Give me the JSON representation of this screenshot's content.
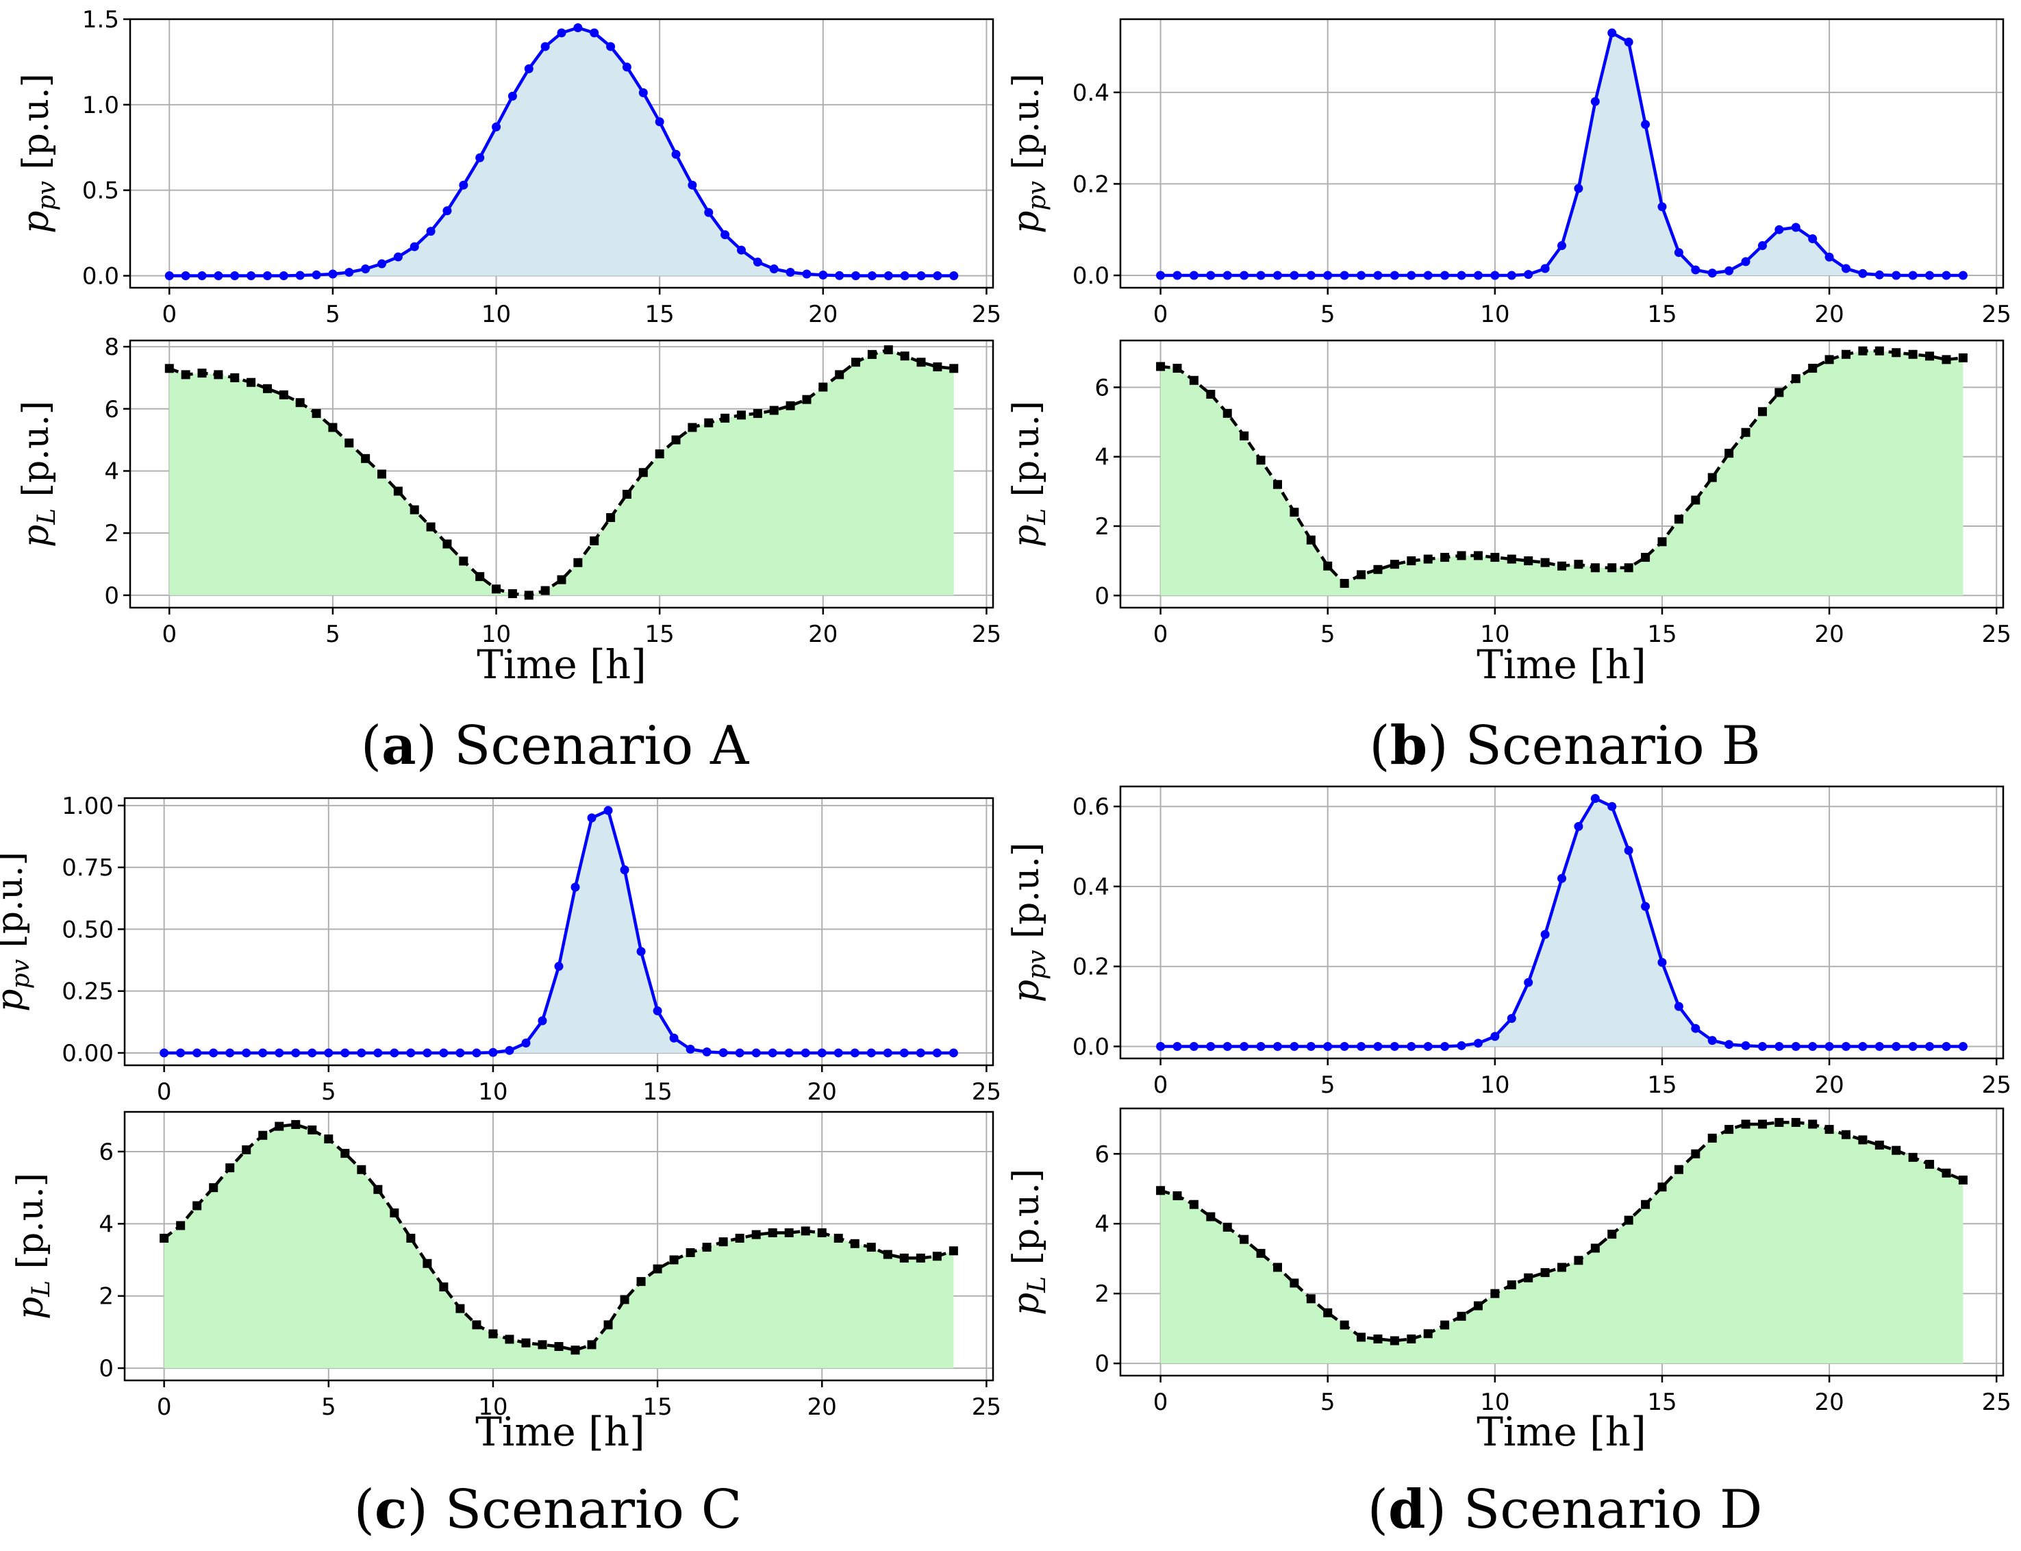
{
  "colors": {
    "pv_line": "#0000ff",
    "pv_fill": "#d5e8f0",
    "load_line": "#000000",
    "load_fill": "#c6f5c6",
    "grid": "#b0b0b0",
    "axes": "#000000"
  },
  "chart_data": [
    {
      "id": "A",
      "caption_letter": "a",
      "caption_text": "Scenario A",
      "xlabel": "Time [h]",
      "xticks": [
        0,
        5,
        10,
        15,
        20,
        25
      ],
      "xlim": [
        -1.2,
        25.2
      ],
      "pv": {
        "type": "area-line",
        "ylabel": "p_pv [p.u.]",
        "ylabel_main": "p",
        "ylabel_sub": "pv",
        "ylabel_unit": " [p.u.]",
        "ylim": [
          -0.07,
          1.5
        ],
        "yticks": [
          0.0,
          0.5,
          1.0,
          1.5
        ],
        "ytick_labels": [
          "0.0",
          "0.5",
          "1.0",
          "1.5"
        ],
        "x": [
          0,
          0.5,
          1,
          1.5,
          2,
          2.5,
          3,
          3.5,
          4,
          4.5,
          5,
          5.5,
          6,
          6.5,
          7,
          7.5,
          8,
          8.5,
          9,
          9.5,
          10,
          10.5,
          11,
          11.5,
          12,
          12.5,
          13,
          13.5,
          14,
          14.5,
          15,
          15.5,
          16,
          16.5,
          17,
          17.5,
          18,
          18.5,
          19,
          19.5,
          20,
          20.5,
          21,
          21.5,
          22,
          22.5,
          23,
          23.5,
          24
        ],
        "values": [
          0,
          0,
          0,
          0,
          0,
          0,
          0,
          0,
          0.002,
          0.005,
          0.01,
          0.02,
          0.04,
          0.07,
          0.11,
          0.17,
          0.26,
          0.38,
          0.53,
          0.69,
          0.87,
          1.05,
          1.21,
          1.34,
          1.42,
          1.45,
          1.42,
          1.34,
          1.22,
          1.07,
          0.9,
          0.71,
          0.53,
          0.37,
          0.24,
          0.15,
          0.08,
          0.04,
          0.02,
          0.01,
          0.004,
          0.001,
          0,
          0,
          0,
          0,
          0,
          0,
          0
        ]
      },
      "load": {
        "type": "area-line",
        "ylabel": "p_L [p.u.]",
        "ylabel_main": "p",
        "ylabel_sub": "L",
        "ylabel_unit": " [p.u.]",
        "ylim": [
          -0.4,
          8.2
        ],
        "yticks": [
          0,
          2,
          4,
          6,
          8
        ],
        "ytick_labels": [
          "0",
          "2",
          "4",
          "6",
          "8"
        ],
        "x": [
          0,
          0.5,
          1,
          1.5,
          2,
          2.5,
          3,
          3.5,
          4,
          4.5,
          5,
          5.5,
          6,
          6.5,
          7,
          7.5,
          8,
          8.5,
          9,
          9.5,
          10,
          10.5,
          11,
          11.5,
          12,
          12.5,
          13,
          13.5,
          14,
          14.5,
          15,
          15.5,
          16,
          16.5,
          17,
          17.5,
          18,
          18.5,
          19,
          19.5,
          20,
          20.5,
          21,
          21.5,
          22,
          22.5,
          23,
          23.5,
          24
        ],
        "values": [
          7.3,
          7.1,
          7.15,
          7.1,
          7.0,
          6.85,
          6.65,
          6.45,
          6.2,
          5.85,
          5.4,
          4.9,
          4.4,
          3.9,
          3.35,
          2.75,
          2.2,
          1.65,
          1.1,
          0.6,
          0.2,
          0.05,
          0.0,
          0.15,
          0.5,
          1.05,
          1.75,
          2.5,
          3.25,
          3.95,
          4.55,
          5.0,
          5.4,
          5.55,
          5.7,
          5.8,
          5.85,
          5.95,
          6.1,
          6.3,
          6.7,
          7.1,
          7.5,
          7.75,
          7.9,
          7.7,
          7.5,
          7.35,
          7.3
        ]
      }
    },
    {
      "id": "B",
      "caption_letter": "b",
      "caption_text": "Scenario B",
      "xlabel": "Time [h]",
      "xticks": [
        0,
        5,
        10,
        15,
        20,
        25
      ],
      "xlim": [
        -1.2,
        25.2
      ],
      "pv": {
        "type": "area-line",
        "ylabel": "p_pv [p.u.]",
        "ylabel_main": "p",
        "ylabel_sub": "pv",
        "ylabel_unit": " [p.u.]",
        "ylim": [
          -0.027,
          0.56
        ],
        "yticks": [
          0.0,
          0.2,
          0.4
        ],
        "ytick_labels": [
          "0.0",
          "0.2",
          "0.4"
        ],
        "x": [
          0,
          0.5,
          1,
          1.5,
          2,
          2.5,
          3,
          3.5,
          4,
          4.5,
          5,
          5.5,
          6,
          6.5,
          7,
          7.5,
          8,
          8.5,
          9,
          9.5,
          10,
          10.5,
          11,
          11.5,
          12,
          12.5,
          13,
          13.5,
          14,
          14.5,
          15,
          15.5,
          16,
          16.5,
          17,
          17.5,
          18,
          18.5,
          19,
          19.5,
          20,
          20.5,
          21,
          21.5,
          22,
          22.5,
          23,
          23.5,
          24
        ],
        "values": [
          0,
          0,
          0,
          0,
          0,
          0,
          0,
          0,
          0,
          0,
          0,
          0,
          0,
          0,
          0,
          0,
          0,
          0,
          0,
          0,
          0,
          0,
          0.002,
          0.015,
          0.065,
          0.19,
          0.38,
          0.53,
          0.51,
          0.33,
          0.15,
          0.05,
          0.012,
          0.005,
          0.01,
          0.03,
          0.065,
          0.1,
          0.105,
          0.08,
          0.04,
          0.015,
          0.004,
          0.001,
          0,
          0,
          0,
          0,
          0
        ]
      },
      "load": {
        "type": "area-line",
        "ylabel": "p_L [p.u.]",
        "ylabel_main": "p",
        "ylabel_sub": "L",
        "ylabel_unit": " [p.u.]",
        "ylim": [
          -0.35,
          7.35
        ],
        "yticks": [
          0,
          2,
          4,
          6
        ],
        "ytick_labels": [
          "0",
          "2",
          "4",
          "6"
        ],
        "x": [
          0,
          0.5,
          1,
          1.5,
          2,
          2.5,
          3,
          3.5,
          4,
          4.5,
          5,
          5.5,
          6,
          6.5,
          7,
          7.5,
          8,
          8.5,
          9,
          9.5,
          10,
          10.5,
          11,
          11.5,
          12,
          12.5,
          13,
          13.5,
          14,
          14.5,
          15,
          15.5,
          16,
          16.5,
          17,
          17.5,
          18,
          18.5,
          19,
          19.5,
          20,
          20.5,
          21,
          21.5,
          22,
          22.5,
          23,
          23.5,
          24
        ],
        "values": [
          6.6,
          6.55,
          6.2,
          5.8,
          5.25,
          4.6,
          3.9,
          3.2,
          2.4,
          1.6,
          0.85,
          0.35,
          0.6,
          0.75,
          0.9,
          1.0,
          1.05,
          1.1,
          1.15,
          1.15,
          1.1,
          1.05,
          1.0,
          0.95,
          0.85,
          0.9,
          0.8,
          0.8,
          0.8,
          1.1,
          1.55,
          2.2,
          2.75,
          3.4,
          4.1,
          4.7,
          5.3,
          5.85,
          6.25,
          6.55,
          6.8,
          6.95,
          7.05,
          7.05,
          7.0,
          6.95,
          6.9,
          6.8,
          6.85
        ]
      }
    },
    {
      "id": "C",
      "caption_letter": "c",
      "caption_text": "Scenario C",
      "xlabel": "Time [h]",
      "xticks": [
        0,
        5,
        10,
        15,
        20,
        25
      ],
      "xlim": [
        -1.2,
        25.2
      ],
      "pv": {
        "type": "area-line",
        "ylabel": "p_pv [p.u.]",
        "ylabel_main": "p",
        "ylabel_sub": "pv",
        "ylabel_unit": " [p.u.]",
        "ylim": [
          -0.05,
          1.03
        ],
        "yticks": [
          0.0,
          0.25,
          0.5,
          0.75,
          1.0
        ],
        "ytick_labels": [
          "0.00",
          "0.25",
          "0.50",
          "0.75",
          "1.00"
        ],
        "x": [
          0,
          0.5,
          1,
          1.5,
          2,
          2.5,
          3,
          3.5,
          4,
          4.5,
          5,
          5.5,
          6,
          6.5,
          7,
          7.5,
          8,
          8.5,
          9,
          9.5,
          10,
          10.5,
          11,
          11.5,
          12,
          12.5,
          13,
          13.5,
          14,
          14.5,
          15,
          15.5,
          16,
          16.5,
          17,
          17.5,
          18,
          18.5,
          19,
          19.5,
          20,
          20.5,
          21,
          21.5,
          22,
          22.5,
          23,
          23.5,
          24
        ],
        "values": [
          0,
          0,
          0,
          0,
          0,
          0,
          0,
          0,
          0,
          0,
          0,
          0,
          0,
          0,
          0,
          0,
          0,
          0,
          0,
          0,
          0.002,
          0.01,
          0.04,
          0.13,
          0.35,
          0.67,
          0.95,
          0.98,
          0.74,
          0.41,
          0.17,
          0.06,
          0.015,
          0.004,
          0.001,
          0,
          0,
          0,
          0,
          0,
          0,
          0,
          0,
          0,
          0,
          0,
          0,
          0,
          0
        ]
      },
      "load": {
        "type": "area-line",
        "ylabel": "p_L [p.u.]",
        "ylabel_main": "p",
        "ylabel_sub": "L",
        "ylabel_unit": " [p.u.]",
        "ylim": [
          -0.34,
          7.1
        ],
        "yticks": [
          0,
          2,
          4,
          6
        ],
        "ytick_labels": [
          "0",
          "2",
          "4",
          "6"
        ],
        "x": [
          0,
          0.5,
          1,
          1.5,
          2,
          2.5,
          3,
          3.5,
          4,
          4.5,
          5,
          5.5,
          6,
          6.5,
          7,
          7.5,
          8,
          8.5,
          9,
          9.5,
          10,
          10.5,
          11,
          11.5,
          12,
          12.5,
          13,
          13.5,
          14,
          14.5,
          15,
          15.5,
          16,
          16.5,
          17,
          17.5,
          18,
          18.5,
          19,
          19.5,
          20,
          20.5,
          21,
          21.5,
          22,
          22.5,
          23,
          23.5,
          24
        ],
        "values": [
          3.6,
          3.95,
          4.5,
          5.0,
          5.55,
          6.05,
          6.45,
          6.7,
          6.75,
          6.6,
          6.35,
          5.95,
          5.5,
          4.95,
          4.3,
          3.6,
          2.9,
          2.25,
          1.65,
          1.2,
          0.95,
          0.8,
          0.7,
          0.65,
          0.6,
          0.5,
          0.65,
          1.2,
          1.9,
          2.4,
          2.75,
          3.0,
          3.2,
          3.35,
          3.5,
          3.6,
          3.7,
          3.75,
          3.75,
          3.8,
          3.75,
          3.6,
          3.45,
          3.35,
          3.15,
          3.05,
          3.05,
          3.1,
          3.25
        ]
      }
    },
    {
      "id": "D",
      "caption_letter": "d",
      "caption_text": "Scenario D",
      "xlabel": "Time [h]",
      "xticks": [
        0,
        5,
        10,
        15,
        20,
        25
      ],
      "xlim": [
        -1.2,
        25.2
      ],
      "pv": {
        "type": "area-line",
        "ylabel": "p_pv [p.u.]",
        "ylabel_main": "p",
        "ylabel_sub": "pv",
        "ylabel_unit": " [p.u.]",
        "ylim": [
          -0.03,
          0.65
        ],
        "yticks": [
          0.0,
          0.2,
          0.4,
          0.6
        ],
        "ytick_labels": [
          "0.0",
          "0.2",
          "0.4",
          "0.6"
        ],
        "x": [
          0,
          0.5,
          1,
          1.5,
          2,
          2.5,
          3,
          3.5,
          4,
          4.5,
          5,
          5.5,
          6,
          6.5,
          7,
          7.5,
          8,
          8.5,
          9,
          9.5,
          10,
          10.5,
          11,
          11.5,
          12,
          12.5,
          13,
          13.5,
          14,
          14.5,
          15,
          15.5,
          16,
          16.5,
          17,
          17.5,
          18,
          18.5,
          19,
          19.5,
          20,
          20.5,
          21,
          21.5,
          22,
          22.5,
          23,
          23.5,
          24
        ],
        "values": [
          0,
          0,
          0,
          0,
          0,
          0,
          0,
          0,
          0,
          0,
          0,
          0,
          0,
          0,
          0,
          0,
          0,
          0,
          0.002,
          0.008,
          0.025,
          0.07,
          0.16,
          0.28,
          0.42,
          0.55,
          0.62,
          0.6,
          0.49,
          0.35,
          0.21,
          0.1,
          0.045,
          0.015,
          0.005,
          0.002,
          0,
          0,
          0,
          0,
          0,
          0,
          0,
          0,
          0,
          0,
          0,
          0,
          0
        ]
      },
      "load": {
        "type": "area-line",
        "ylabel": "p_L [p.u.]",
        "ylabel_main": "p",
        "ylabel_sub": "L",
        "ylabel_unit": " [p.u.]",
        "ylim": [
          -0.35,
          7.3
        ],
        "yticks": [
          0,
          2,
          4,
          6
        ],
        "ytick_labels": [
          "0",
          "2",
          "4",
          "6"
        ],
        "x": [
          0,
          0.5,
          1,
          1.5,
          2,
          2.5,
          3,
          3.5,
          4,
          4.5,
          5,
          5.5,
          6,
          6.5,
          7,
          7.5,
          8,
          8.5,
          9,
          9.5,
          10,
          10.5,
          11,
          11.5,
          12,
          12.5,
          13,
          13.5,
          14,
          14.5,
          15,
          15.5,
          16,
          16.5,
          17,
          17.5,
          18,
          18.5,
          19,
          19.5,
          20,
          20.5,
          21,
          21.5,
          22,
          22.5,
          23,
          23.5,
          24
        ],
        "values": [
          4.95,
          4.8,
          4.55,
          4.2,
          3.9,
          3.55,
          3.15,
          2.75,
          2.3,
          1.85,
          1.45,
          1.1,
          0.75,
          0.7,
          0.65,
          0.7,
          0.85,
          1.1,
          1.35,
          1.65,
          2.0,
          2.25,
          2.45,
          2.6,
          2.75,
          2.95,
          3.3,
          3.7,
          4.1,
          4.55,
          5.05,
          5.55,
          6.0,
          6.45,
          6.7,
          6.85,
          6.85,
          6.9,
          6.9,
          6.85,
          6.7,
          6.55,
          6.4,
          6.25,
          6.1,
          5.9,
          5.7,
          5.45,
          5.25
        ]
      }
    }
  ]
}
